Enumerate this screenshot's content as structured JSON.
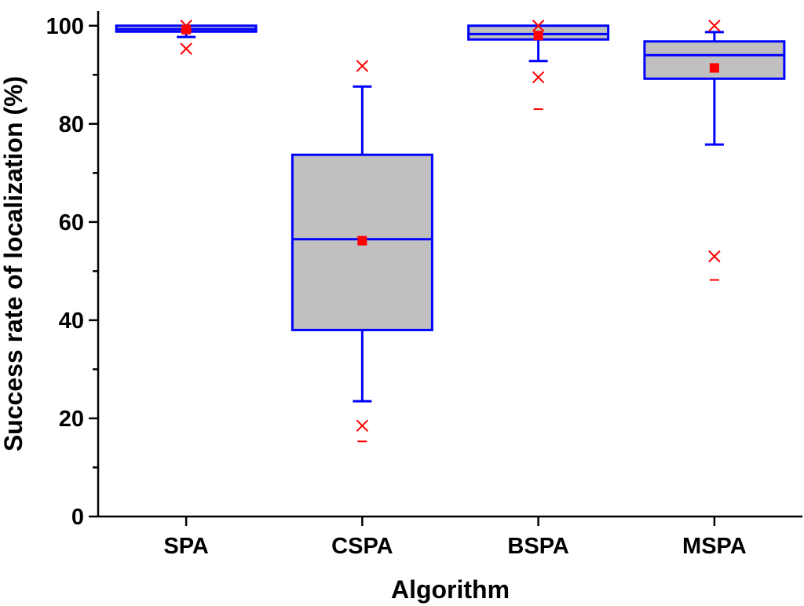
{
  "chart_data": {
    "type": "box",
    "title": "",
    "xlabel": "Algorithm",
    "ylabel": "Success rate of localization (%)",
    "ylim": [
      0,
      103
    ],
    "yticks": [
      0,
      20,
      40,
      60,
      80,
      100
    ],
    "y_minor_ticks": [
      10,
      30,
      50,
      70,
      90
    ],
    "grid": false,
    "legend": "none",
    "categories": [
      "SPA",
      "CSPA",
      "BSPA",
      "MSPA"
    ],
    "series": [
      {
        "category": "SPA",
        "q1": 98.8,
        "median": 99.3,
        "q3": 100.0,
        "whisker_low": 97.7,
        "whisker_high": 100.0,
        "mean": 99.2,
        "outliers": [
          95.3,
          100.0
        ],
        "extremes": []
      },
      {
        "category": "CSPA",
        "q1": 38.0,
        "median": 56.5,
        "q3": 73.7,
        "whisker_low": 23.5,
        "whisker_high": 87.6,
        "mean": 56.2,
        "outliers": [
          18.5,
          91.8
        ],
        "extremes": [
          15.3
        ]
      },
      {
        "category": "BSPA",
        "q1": 97.2,
        "median": 98.3,
        "q3": 100.0,
        "whisker_low": 92.8,
        "whisker_high": 100.0,
        "mean": 98.0,
        "outliers": [
          89.5,
          100.0
        ],
        "extremes": [
          83.0
        ]
      },
      {
        "category": "MSPA",
        "q1": 89.2,
        "median": 94.0,
        "q3": 96.8,
        "whisker_low": 75.8,
        "whisker_high": 98.7,
        "mean": 91.4,
        "outliers": [
          53.0,
          100.0
        ],
        "extremes": [
          48.2
        ]
      }
    ],
    "colors": {
      "box_fill": "#c0c0c0",
      "box_stroke": "#0000ff",
      "mean_marker": "#ff0000",
      "outlier_marker": "#ff0000"
    }
  }
}
